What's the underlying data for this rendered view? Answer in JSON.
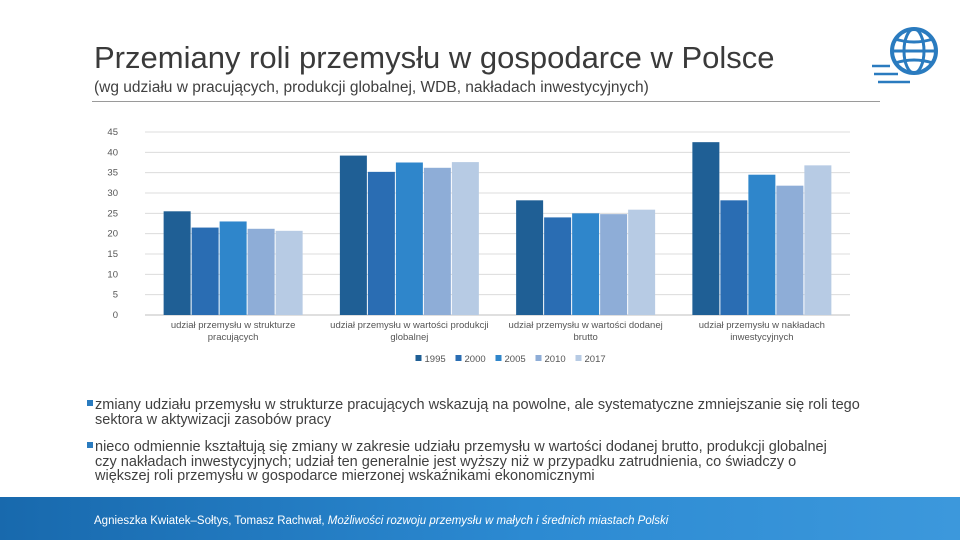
{
  "slide": {
    "title": "Przemiany roli przemysłu w gospodarce w Polsce",
    "subtitle": "(wg udziału w pracujących, produkcji globalnej, WDB, nakładach inwestycyjnych)",
    "bullets": [
      "zmiany udziału przemysłu w strukturze pracujących wskazują na powolne, ale systematyczne zmniejszanie się roli tego sektora w aktywizacji zasobów pracy",
      "nieco odmiennie kształtują się zmiany w zakresie udziału przemysłu w wartości dodanej brutto, produkcji globalnej czy nakładach inwestycyjnych; udział ten generalnie jest wyższy niż w przypadku zatrudnienia, co świadczy o większej roli przemysłu w gospodarce mierzonej wskaźnikami ekonomicznymi"
    ],
    "footer": {
      "authors": "Agnieszka Kwiatek–Sołtys, Tomasz Rachwał, ",
      "work": "Możliwości rozwoju przemysłu w małych i średnich miastach Polski"
    },
    "logo_icon": "globe-icon",
    "accent_color": "#2a7bbf"
  },
  "chart_data": {
    "type": "bar",
    "categories": [
      [
        "udział przemysłu w strukturze",
        "pracujących"
      ],
      [
        "udział przemysłu w wartości produkcji",
        "globalnej"
      ],
      [
        "udział przemysłu w wartości dodanej",
        "brutto"
      ],
      [
        "udział przemysłu w nakładach",
        "inwestycyjnych"
      ]
    ],
    "series": [
      {
        "name": "1995",
        "color": "#1f5f95",
        "values": [
          25.5,
          39.2,
          28.2,
          42.5
        ]
      },
      {
        "name": "2000",
        "color": "#2a6db3",
        "values": [
          21.5,
          35.2,
          24.0,
          28.2
        ]
      },
      {
        "name": "2005",
        "color": "#2f86cb",
        "values": [
          23.0,
          37.5,
          25.0,
          34.5
        ]
      },
      {
        "name": "2010",
        "color": "#8eadd7",
        "values": [
          21.2,
          36.2,
          24.8,
          31.8
        ]
      },
      {
        "name": "2017",
        "color": "#b7cbe4",
        "values": [
          20.7,
          37.6,
          25.9,
          36.8
        ]
      }
    ],
    "y_ticks": [
      0,
      5,
      10,
      15,
      20,
      25,
      30,
      35,
      40,
      45
    ],
    "ylim": [
      0,
      45
    ],
    "grid": true,
    "legend": "bottom-center"
  }
}
